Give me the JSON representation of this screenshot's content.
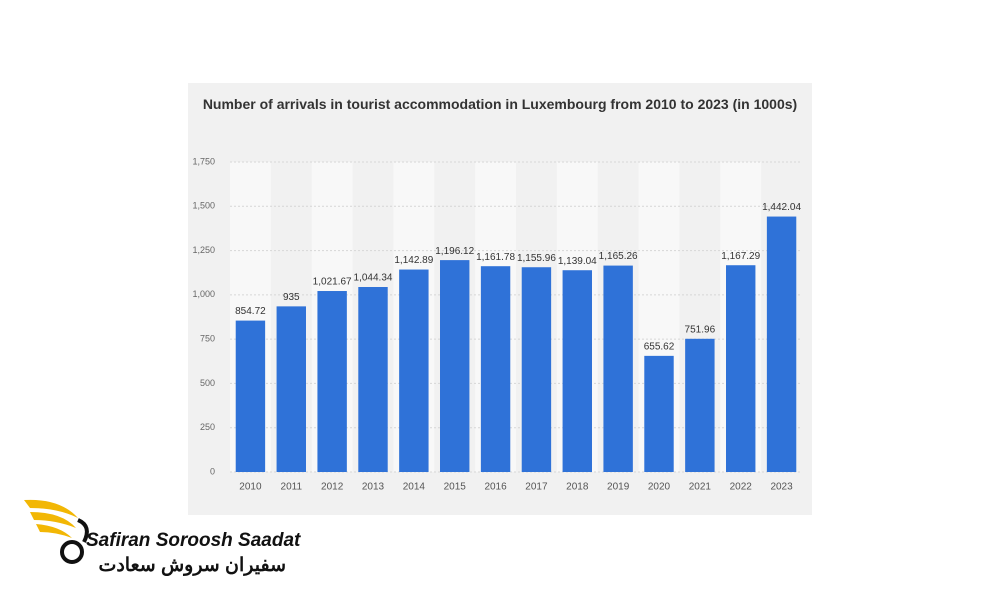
{
  "chart_data": {
    "type": "bar",
    "title": "Number of arrivals in tourist accommodation in Luxembourg from 2010 to 2023 (in 1000s)",
    "categories": [
      "2010",
      "2011",
      "2012",
      "2013",
      "2014",
      "2015",
      "2016",
      "2017",
      "2018",
      "2019",
      "2020",
      "2021",
      "2022",
      "2023"
    ],
    "values": [
      854.72,
      935,
      1021.67,
      1044.34,
      1142.89,
      1196.12,
      1161.78,
      1155.96,
      1139.04,
      1165.26,
      655.62,
      751.96,
      1167.29,
      1442.04
    ],
    "value_labels": [
      "854.72",
      "935",
      "1,021.67",
      "1,044.34",
      "1,142.89",
      "1,196.12",
      "1,161.78",
      "1,155.96",
      "1,139.04",
      "1,165.26",
      "655.62",
      "751.96",
      "1,167.29",
      "1,442.04"
    ],
    "color": "#2f72d8",
    "ylim": [
      0,
      1750
    ],
    "yticks": [
      0,
      250,
      500,
      750,
      {
        "value": 1000,
        "label": "1,000"
      },
      {
        "value": 1250,
        "label": "1,250"
      },
      {
        "value": 1500,
        "label": "1,500"
      },
      {
        "value": 1750,
        "label": "1,750"
      }
    ],
    "grid": true
  },
  "logo": {
    "name": "Safiran Soroosh Saadat",
    "name_fa": "سفیران سروش سعادت"
  }
}
